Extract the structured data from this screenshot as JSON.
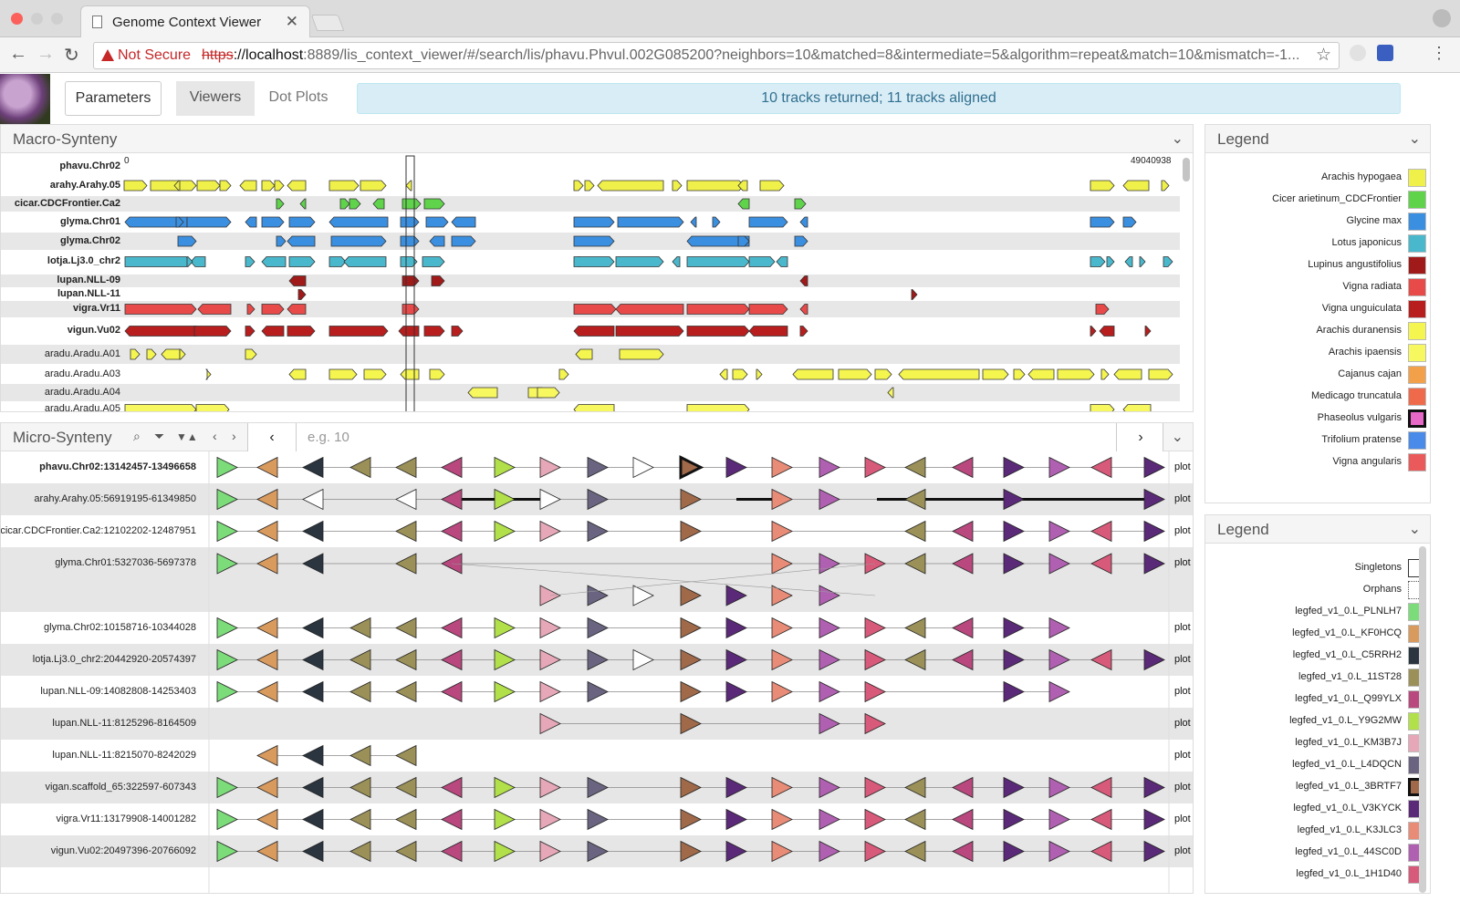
{
  "browser": {
    "tab_title": "Genome Context Viewer",
    "not_secure": "Not Secure",
    "url_scheme": "https",
    "url_host": "://localhost",
    "url_rest": ":8889/lis_context_viewer/#/search/lis/phavu.Phvul.002G085200?neighbors=10&matched=8&intermediate=5&algorithm=repeat&match=10&mismatch=-1..."
  },
  "header": {
    "parameters_label": "Parameters",
    "viewers_label": "Viewers",
    "dot_plots_label": "Dot Plots",
    "alert_text": "10 tracks returned; 11 tracks aligned"
  },
  "macro": {
    "title": "Macro-Synteny",
    "scale_start": "0",
    "scale_end": "49040938",
    "rows": [
      {
        "label": "phavu.Chr02",
        "bold": true
      },
      {
        "label": "arahy.Arahy.05",
        "bold": true
      },
      {
        "label": "cicar.CDCFrontier.Ca2",
        "bold": true
      },
      {
        "label": "glyma.Chr01",
        "bold": true
      },
      {
        "label": "glyma.Chr02",
        "bold": true
      },
      {
        "label": "lotja.Lj3.0_chr2",
        "bold": true
      },
      {
        "label": "lupan.NLL-09",
        "bold": true
      },
      {
        "label": "lupan.NLL-11",
        "bold": true
      },
      {
        "label": "vigra.Vr11",
        "bold": true
      },
      {
        "label": "vigun.Vu02",
        "bold": true
      },
      {
        "label": "aradu.Aradu.A01",
        "bold": false
      },
      {
        "label": "aradu.Aradu.A03",
        "bold": false
      },
      {
        "label": "aradu.Aradu.A04",
        "bold": false
      },
      {
        "label": "aradu.Aradu.A05",
        "bold": false
      }
    ]
  },
  "micro": {
    "title": "Micro-Synteny",
    "search_placeholder": "e.g. 10",
    "prev_symbol": "‹",
    "next_symbol": "›",
    "plot_label": "plot",
    "rows": [
      {
        "label": "phavu.Chr02:13142457-13496658",
        "bold": true
      },
      {
        "label": "arahy.Arahy.05:56919195-61349850",
        "bold": false
      },
      {
        "label": "cicar.CDCFrontier.Ca2:12102202-12487951",
        "bold": false
      },
      {
        "label": "glyma.Chr01:5327036-5697378",
        "bold": false
      },
      {
        "label": "glyma.Chr02:10158716-10344028",
        "bold": false
      },
      {
        "label": "lotja.Lj3.0_chr2:20442920-20574397",
        "bold": false
      },
      {
        "label": "lupan.NLL-09:14082808-14253403",
        "bold": false
      },
      {
        "label": "lupan.NLL-11:8125296-8164509",
        "bold": false
      },
      {
        "label": "lupan.NLL-11:8215070-8242029",
        "bold": false
      },
      {
        "label": "vigan.scaffold_65:322597-607343",
        "bold": false
      },
      {
        "label": "vigra.Vr11:13179908-14001282",
        "bold": false
      },
      {
        "label": "vigun.Vu02:20497396-20766092",
        "bold": false
      }
    ]
  },
  "legend_species": {
    "title": "Legend",
    "items": [
      {
        "label": "Arachis hypogaea",
        "color": "#f0f04a"
      },
      {
        "label": "Cicer arietinum_CDCFrontier",
        "color": "#5fd44a"
      },
      {
        "label": "Glycine max",
        "color": "#3b8fe0"
      },
      {
        "label": "Lotus japonicus",
        "color": "#4ab8cc"
      },
      {
        "label": "Lupinus angustifolius",
        "color": "#a01a1a"
      },
      {
        "label": "Vigna radiata",
        "color": "#e84a4a"
      },
      {
        "label": "Vigna unguiculata",
        "color": "#b81e1e"
      },
      {
        "label": "Arachis duranensis",
        "color": "#f5f550"
      },
      {
        "label": "Arachis ipaensis",
        "color": "#f7f760"
      },
      {
        "label": "Cajanus cajan",
        "color": "#f2a04a"
      },
      {
        "label": "Medicago truncatula",
        "color": "#ef6a4a"
      },
      {
        "label": "Phaseolus vulgaris",
        "color": "#e868c8",
        "selected": true
      },
      {
        "label": "Trifolium pratense",
        "color": "#4a8ae8"
      },
      {
        "label": "Vigna angularis",
        "color": "#ea5a5a"
      }
    ]
  },
  "legend_families": {
    "title": "Legend",
    "items": [
      {
        "label": "Singletons",
        "color": "#ffffff",
        "kind": "singleton"
      },
      {
        "label": "Orphans",
        "color": "#ffffff",
        "kind": "orphan"
      },
      {
        "label": "legfed_v1_0.L_PLNLH7",
        "color": "#7ddc7a"
      },
      {
        "label": "legfed_v1_0.L_KF0HCQ",
        "color": "#d99a5e"
      },
      {
        "label": "legfed_v1_0.L_C5RRH2",
        "color": "#2a3540"
      },
      {
        "label": "legfed_v1_0.L_11ST28",
        "color": "#9a9058"
      },
      {
        "label": "legfed_v1_0.L_Q99YLX",
        "color": "#b8487e"
      },
      {
        "label": "legfed_v1_0.L_Y9G2MW",
        "color": "#b2e04a"
      },
      {
        "label": "legfed_v1_0.L_KM3B7J",
        "color": "#e6a8b8"
      },
      {
        "label": "legfed_v1_0.L_L4DQCN",
        "color": "#6a6480"
      },
      {
        "label": "legfed_v1_0.L_3BRTF7",
        "color": "#a06a4a",
        "selected": true
      },
      {
        "label": "legfed_v1_0.L_V3KYCK",
        "color": "#5a2a78"
      },
      {
        "label": "legfed_v1_0.L_K3JLC3",
        "color": "#e88c78"
      },
      {
        "label": "legfed_v1_0.L_44SC0D",
        "color": "#b060b0"
      },
      {
        "label": "legfed_v1_0.L_1H1D40",
        "color": "#d85a7a"
      }
    ]
  }
}
